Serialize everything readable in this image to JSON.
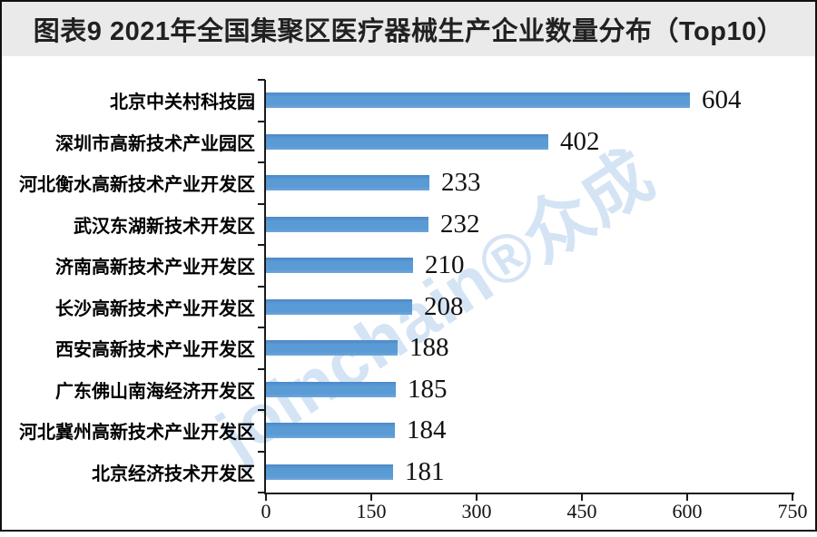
{
  "title": "图表9 2021年全国集聚区医疗器械生产企业数量分布（Top10）",
  "watermark": "joinchain®众成",
  "colors": {
    "bar": "#5b9bd5",
    "bar_edge": "#4b89c8",
    "title_text": "#212121",
    "title_bar_bg": "#eaeaea",
    "axis": "#1a1a1a",
    "watermark": "#5b9bd5",
    "value_text": "#111111"
  },
  "chart_data": {
    "type": "bar",
    "orientation": "horizontal",
    "title": "图表9 2021年全国集聚区医疗器械生产企业数量分布（Top10）",
    "categories": [
      "北京中关村科技园",
      "深圳市高新技术产业园区",
      "河北衡水高新技术产业开发区",
      "武汉东湖新技术开发区",
      "济南高新技术产业开发区",
      "长沙高新技术产业开发区",
      "西安高新技术产业开发区",
      "广东佛山南海经济开发区",
      "河北冀州高新技术产业开发区",
      "北京经济技术开发区"
    ],
    "values": [
      604,
      402,
      233,
      232,
      210,
      208,
      188,
      185,
      184,
      181
    ],
    "value_labels_shown": true,
    "xlabel": "",
    "ylabel": "",
    "xlim": [
      0,
      750
    ],
    "x_ticks": [
      0,
      150,
      300,
      450,
      600,
      750
    ],
    "grid": false,
    "legend": null
  }
}
